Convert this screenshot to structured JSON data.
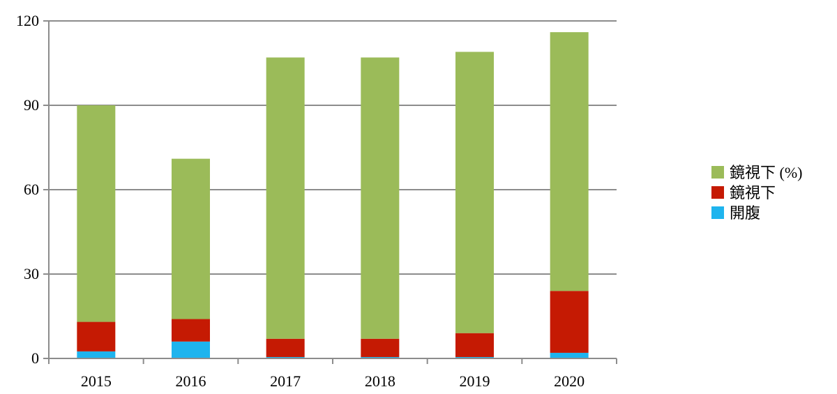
{
  "chart_data": {
    "type": "bar",
    "stacked": true,
    "categories": [
      "2015",
      "2016",
      "2017",
      "2018",
      "2019",
      "2020"
    ],
    "series": [
      {
        "name": "開腹",
        "color": "#1EB4EE",
        "values": [
          2.5,
          6,
          0.5,
          0.5,
          0.5,
          2
        ]
      },
      {
        "name": "鏡視下",
        "color": "#C51A03",
        "values": [
          10.5,
          8,
          6.5,
          6.5,
          8.5,
          22
        ]
      },
      {
        "name": "鏡視下 (%)",
        "color": "#9BBB59",
        "values": [
          77,
          57,
          100,
          100,
          100,
          92
        ]
      }
    ],
    "legend_order": [
      2,
      1,
      0
    ],
    "ylim": [
      0,
      120
    ],
    "yticks": [
      0,
      30,
      60,
      90,
      120
    ],
    "grid": true,
    "legend_position": "right",
    "title": "",
    "xlabel": "",
    "ylabel": ""
  }
}
